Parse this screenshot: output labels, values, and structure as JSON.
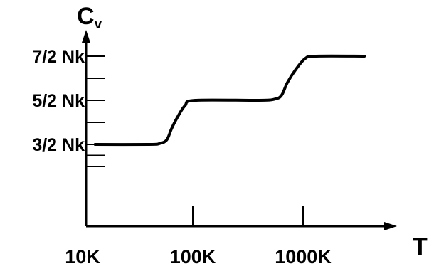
{
  "chart_data": {
    "type": "line",
    "title": "",
    "xscale": "log",
    "xlabel": "T",
    "ylabel": {
      "main": "C",
      "sub": "v"
    },
    "x_ticks": [
      {
        "value": 10,
        "label": "10K"
      },
      {
        "value": 100,
        "label": "100K"
      },
      {
        "value": 1000,
        "label": "1000K"
      }
    ],
    "y_ticks": [
      {
        "value": 1.5,
        "label": "3/2 Nk"
      },
      {
        "value": 2.5,
        "label": "5/2 Nk"
      },
      {
        "value": 3.5,
        "label": "7/2 Nk"
      }
    ],
    "y_minor_ticks": [
      1.0,
      1.25,
      2.0,
      3.0
    ],
    "xlim": [
      6.8,
      5000
    ],
    "ylim": [
      0.8,
      4.2
    ],
    "grid": false,
    "series": [
      {
        "color": "#000000",
        "points": [
          [
            13,
            1.5
          ],
          [
            40,
            1.5
          ],
          [
            50,
            1.52
          ],
          [
            58,
            1.6
          ],
          [
            64,
            1.85
          ],
          [
            72,
            2.1
          ],
          [
            85,
            2.38
          ],
          [
            105,
            2.5
          ],
          [
            400,
            2.5
          ],
          [
            560,
            2.53
          ],
          [
            640,
            2.62
          ],
          [
            720,
            2.9
          ],
          [
            860,
            3.2
          ],
          [
            1050,
            3.45
          ],
          [
            1300,
            3.5
          ],
          [
            3600,
            3.5
          ]
        ]
      }
    ]
  }
}
